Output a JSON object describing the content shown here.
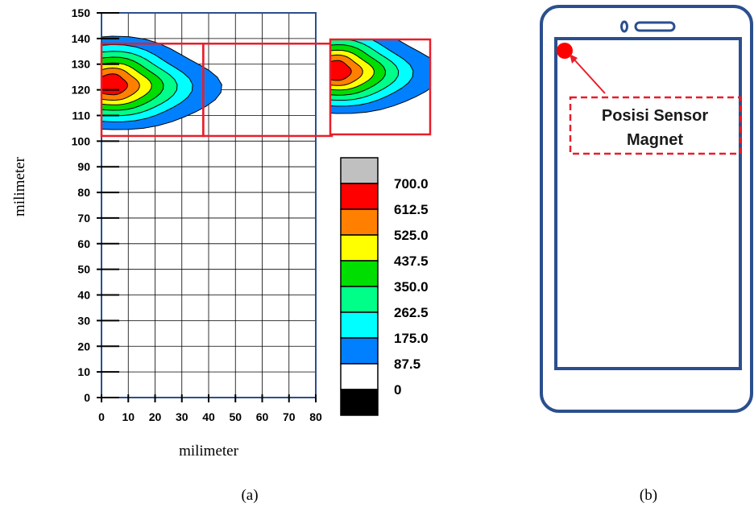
{
  "chart_data": [
    {
      "type": "heatmap",
      "xlabel": "milimeter",
      "ylabel": "milimeter",
      "xlim": [
        0,
        80
      ],
      "ylim": [
        0,
        150
      ],
      "x_ticks": [
        "0",
        "10",
        "20",
        "30",
        "40",
        "50",
        "60",
        "70",
        "80"
      ],
      "y_ticks": [
        "0",
        "10",
        "20",
        "30",
        "40",
        "50",
        "60",
        "70",
        "80",
        "90",
        "100",
        "110",
        "120",
        "130",
        "140",
        "150"
      ],
      "grid": true,
      "legend_position": "right",
      "legend": {
        "levels": [
          "700.0",
          "612.5",
          "525.0",
          "437.5",
          "350.0",
          "262.5",
          "175.0",
          "87.5",
          "0"
        ],
        "colors": [
          "#c0c0c0",
          "#ff0000",
          "#ff8000",
          "#ffff00",
          "#00dd00",
          "#00ff88",
          "#00ffff",
          "#0080ff",
          "#ffffff",
          "#000000"
        ]
      },
      "hotspot": {
        "x": 4,
        "y": 122,
        "value": 700.0
      },
      "highlight_boxes": [
        {
          "x_range": [
            0,
            38
          ],
          "y_range": [
            102,
            138
          ]
        },
        {
          "x_range": [
            38,
            86
          ],
          "y_range": [
            102,
            138
          ]
        }
      ],
      "caption": "(a)"
    },
    {
      "type": "diagram",
      "callout_lines": [
        "Posisi Sensor",
        "Magnet"
      ],
      "marker_color": "#ff0000",
      "frame_color": "#2b4f8e",
      "caption": "(b)"
    }
  ]
}
